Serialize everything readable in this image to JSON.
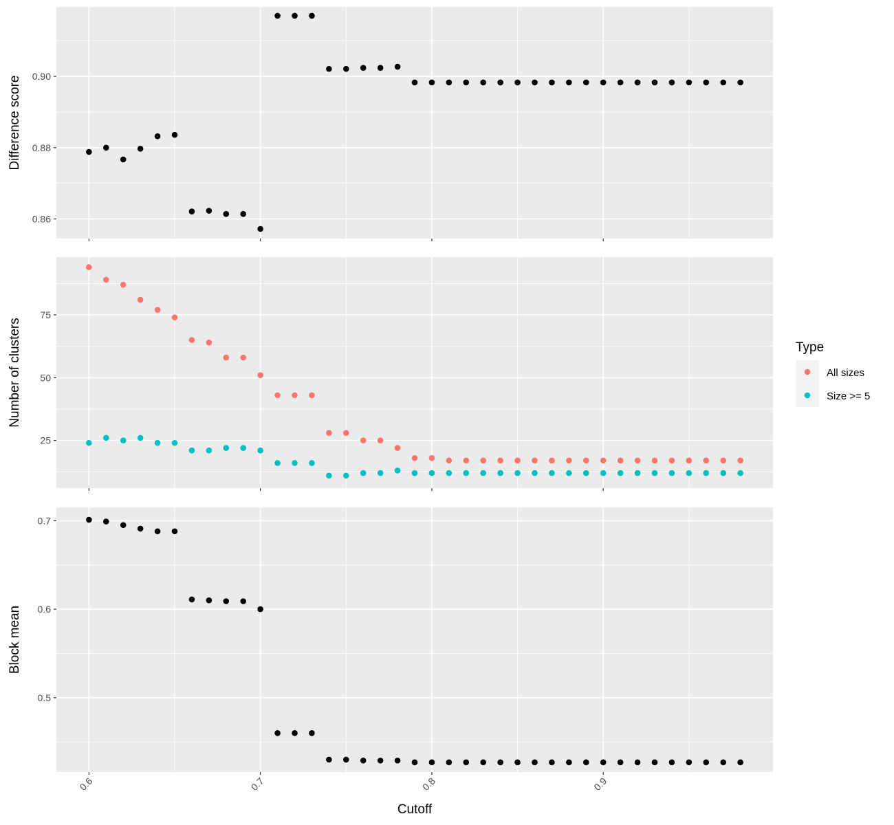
{
  "chart_data": {
    "type": "scatter",
    "x_title": "Cutoff",
    "x_ticks": [
      0.6,
      0.7,
      0.8,
      0.9
    ],
    "x_tick_labels": [
      "0.6",
      "0.7",
      "0.8",
      "0.9"
    ],
    "xlim": [
      0.581,
      0.999
    ],
    "x": [
      0.6,
      0.61,
      0.62,
      0.63,
      0.64,
      0.65,
      0.66,
      0.67,
      0.68,
      0.69,
      0.7,
      0.71,
      0.72,
      0.73,
      0.74,
      0.75,
      0.76,
      0.77,
      0.78,
      0.79,
      0.8,
      0.81,
      0.82,
      0.83,
      0.84,
      0.85,
      0.86,
      0.87,
      0.88,
      0.89,
      0.9,
      0.91,
      0.92,
      0.93,
      0.94,
      0.95,
      0.96,
      0.97,
      0.98
    ],
    "background": "#ebebeb",
    "grid": true,
    "legend": {
      "title": "Type",
      "position": "right",
      "items": [
        {
          "label": "All sizes",
          "color": "#F8766D"
        },
        {
          "label": "Size >= 5",
          "color": "#00BFC4"
        }
      ]
    },
    "panels": [
      {
        "ylabel": "Difference score",
        "ylim": [
          0.8545,
          0.9195
        ],
        "y_ticks": [
          0.86,
          0.88,
          0.9
        ],
        "y_tick_labels": [
          "0.86",
          "0.88",
          "0.90"
        ],
        "series": [
          {
            "color": "#000000",
            "values": [
              0.8788,
              0.88,
              0.8767,
              0.8797,
              0.8832,
              0.8836,
              0.8621,
              0.8623,
              0.8614,
              0.8614,
              0.8572,
              0.917,
              0.917,
              0.917,
              0.9021,
              0.9021,
              0.9024,
              0.9024,
              0.9027,
              0.8983,
              0.8983,
              0.8983,
              0.8983,
              0.8983,
              0.8983,
              0.8983,
              0.8983,
              0.8983,
              0.8983,
              0.8983,
              0.8983,
              0.8983,
              0.8983,
              0.8983,
              0.8983,
              0.8983,
              0.8983,
              0.8983,
              0.8983
            ]
          }
        ]
      },
      {
        "ylabel": "Number of clusters",
        "ylim": [
          6,
          98
        ],
        "y_ticks": [
          25,
          50,
          75
        ],
        "y_tick_labels": [
          "25",
          "50",
          "75"
        ],
        "series": [
          {
            "name": "All sizes",
            "color": "#F8766D",
            "values": [
              94,
              89,
              87,
              81,
              77,
              74,
              65,
              64,
              58,
              58,
              51,
              43,
              43,
              43,
              28,
              28,
              25,
              25,
              22,
              18,
              18,
              17,
              17,
              17,
              17,
              17,
              17,
              17,
              17,
              17,
              17,
              17,
              17,
              17,
              17,
              17,
              17,
              17,
              17
            ]
          },
          {
            "name": "Size >= 5",
            "color": "#00BFC4",
            "values": [
              24,
              26,
              25,
              26,
              24,
              24,
              21,
              21,
              22,
              22,
              21,
              16,
              16,
              16,
              11,
              11,
              12,
              12,
              13,
              12,
              12,
              12,
              12,
              12,
              12,
              12,
              12,
              12,
              12,
              12,
              12,
              12,
              12,
              12,
              12,
              12,
              12,
              12,
              12
            ]
          }
        ]
      },
      {
        "ylabel": "Block mean",
        "ylim": [
          0.416,
          0.715
        ],
        "y_ticks": [
          0.5,
          0.6,
          0.7
        ],
        "y_tick_labels": [
          "0.5",
          "0.6",
          "0.7"
        ],
        "series": [
          {
            "color": "#000000",
            "values": [
              0.701,
              0.699,
              0.695,
              0.691,
              0.688,
              0.688,
              0.611,
              0.61,
              0.609,
              0.609,
              0.6,
              0.46,
              0.46,
              0.46,
              0.43,
              0.43,
              0.429,
              0.429,
              0.429,
              0.427,
              0.427,
              0.427,
              0.427,
              0.427,
              0.427,
              0.427,
              0.427,
              0.427,
              0.427,
              0.427,
              0.427,
              0.427,
              0.427,
              0.427,
              0.427,
              0.427,
              0.427,
              0.427,
              0.427
            ]
          }
        ]
      }
    ]
  }
}
